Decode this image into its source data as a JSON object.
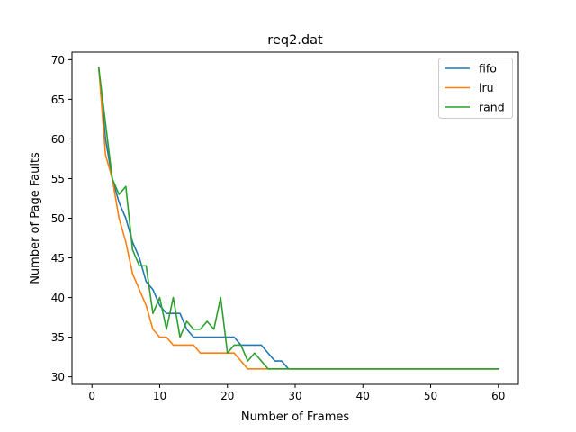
{
  "chart_data": {
    "type": "line",
    "title": "req2.dat",
    "xlabel": "Number of Frames",
    "ylabel": "Number of Page Faults",
    "xlim": [
      -2.95,
      62.95
    ],
    "ylim": [
      29.05,
      70.95
    ],
    "xticks": [
      0,
      10,
      20,
      30,
      40,
      50,
      60
    ],
    "yticks": [
      30,
      35,
      40,
      45,
      50,
      55,
      60,
      65,
      70
    ],
    "grid": false,
    "legend_position": "top-right",
    "x_start": 1,
    "x_end": 60,
    "series": [
      {
        "name": "fifo",
        "color": "#1f77b4",
        "values": [
          69,
          60,
          55,
          52,
          50,
          47,
          45,
          42,
          41,
          39,
          38,
          38,
          38,
          36,
          35,
          35,
          35,
          35,
          35,
          35,
          35,
          34,
          34,
          34,
          34,
          33,
          32,
          32,
          31,
          31,
          31,
          31,
          31,
          31,
          31,
          31,
          31,
          31,
          31,
          31,
          31,
          31,
          31,
          31,
          31,
          31,
          31,
          31,
          31,
          31,
          31,
          31,
          31,
          31,
          31,
          31,
          31,
          31,
          31,
          31
        ]
      },
      {
        "name": "lru",
        "color": "#ff7f0e",
        "values": [
          69,
          58,
          55,
          50,
          47,
          43,
          41,
          39,
          36,
          35,
          35,
          34,
          34,
          34,
          34,
          33,
          33,
          33,
          33,
          33,
          33,
          32,
          31,
          31,
          31,
          31,
          31,
          31,
          31,
          31,
          31,
          31,
          31,
          31,
          31,
          31,
          31,
          31,
          31,
          31,
          31,
          31,
          31,
          31,
          31,
          31,
          31,
          31,
          31,
          31,
          31,
          31,
          31,
          31,
          31,
          31,
          31,
          31,
          31,
          31
        ]
      },
      {
        "name": "rand",
        "color": "#2ca02c",
        "values": [
          69,
          62,
          55,
          53,
          54,
          46,
          44,
          44,
          38,
          40,
          36,
          40,
          35,
          37,
          36,
          36,
          37,
          36,
          40,
          33,
          34,
          34,
          32,
          33,
          32,
          31,
          31,
          31,
          31,
          31,
          31,
          31,
          31,
          31,
          31,
          31,
          31,
          31,
          31,
          31,
          31,
          31,
          31,
          31,
          31,
          31,
          31,
          31,
          31,
          31,
          31,
          31,
          31,
          31,
          31,
          31,
          31,
          31,
          31,
          31
        ]
      }
    ]
  }
}
